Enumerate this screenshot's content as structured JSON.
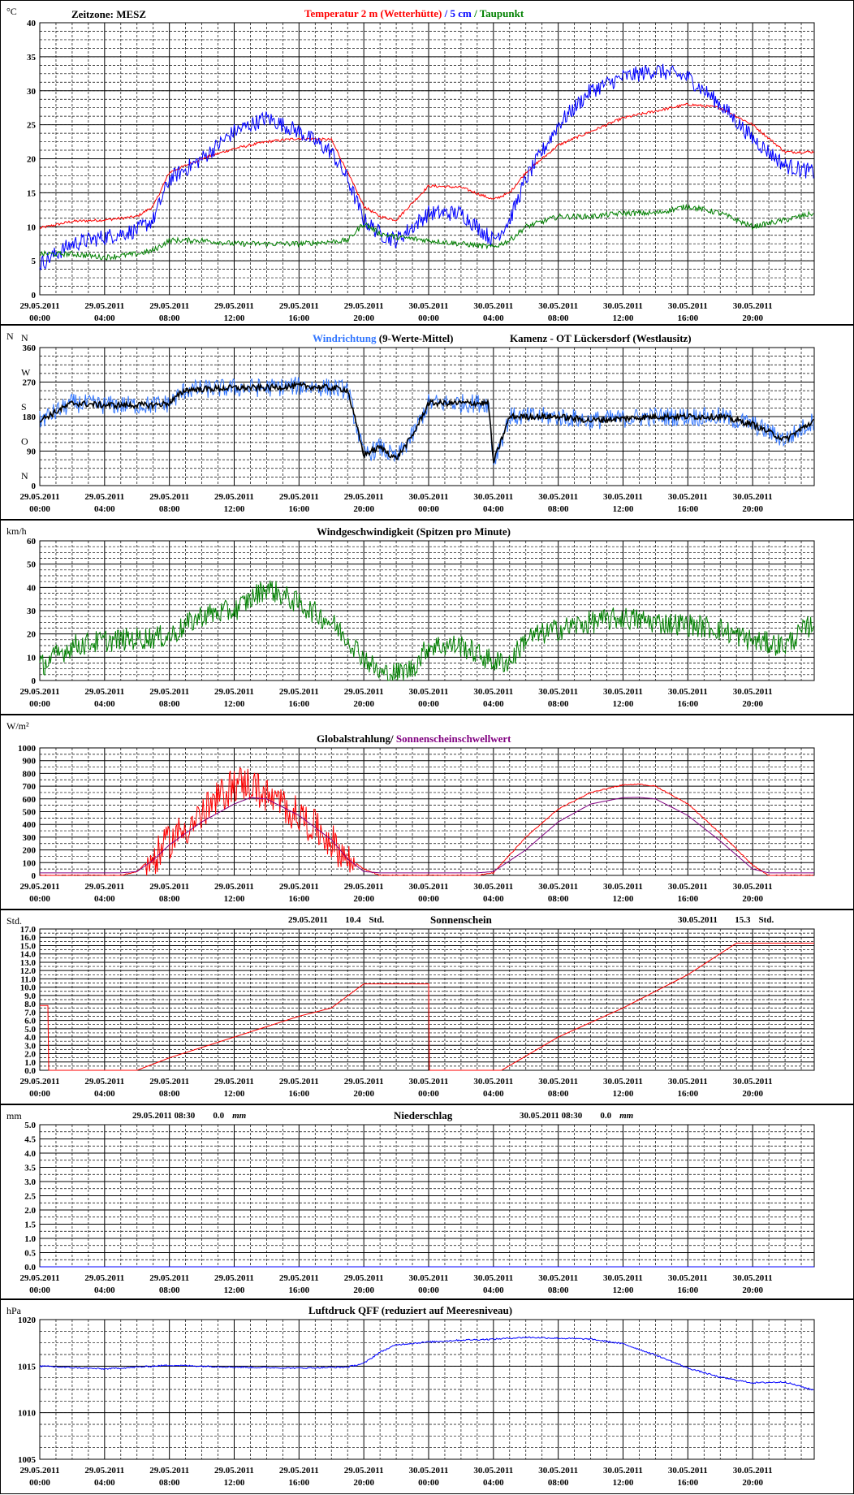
{
  "x_ticks": [
    [
      "29.05.2011",
      "00:00"
    ],
    [
      "29.05.2011",
      "04:00"
    ],
    [
      "29.05.2011",
      "08:00"
    ],
    [
      "29.05.2011",
      "12:00"
    ],
    [
      "29.05.2011",
      "16:00"
    ],
    [
      "29.05.2011",
      "20:00"
    ],
    [
      "30.05.2011",
      "00:00"
    ],
    [
      "30.05.2011",
      "04:00"
    ],
    [
      "30.05.2011",
      "08:00"
    ],
    [
      "30.05.2011",
      "12:00"
    ],
    [
      "30.05.2011",
      "16:00"
    ],
    [
      "30.05.2011",
      "20:00"
    ]
  ],
  "colors": {
    "red": "#ff0000",
    "blue": "#0000ff",
    "green": "#008000",
    "purple": "#800080",
    "black": "#000000",
    "lightblue": "#3377ff"
  },
  "chart_data": [
    {
      "id": "temperature",
      "type": "line",
      "unit": "°C",
      "header": "Zeitzone: MESZ",
      "title_parts": [
        {
          "text": "Temperatur 2 m (Wetterhütte)",
          "color": "#ff0000"
        },
        {
          "text": " / ",
          "color": "#0000ff"
        },
        {
          "text": "5 cm",
          "color": "#0000ff"
        },
        {
          "text": " / ",
          "color": "#008000"
        },
        {
          "text": "Taupunkt",
          "color": "#008000"
        }
      ],
      "ylim": [
        0,
        40
      ],
      "y_ticks": [
        "0",
        "5",
        "10",
        "15",
        "20",
        "25",
        "30",
        "35",
        "40"
      ],
      "x_hours": [
        0,
        2,
        4,
        6,
        7,
        8,
        10,
        12,
        14,
        16,
        18,
        19,
        20,
        21,
        22,
        24,
        26,
        28,
        29,
        30,
        32,
        34,
        36,
        38,
        40,
        42,
        44,
        46,
        47.8
      ],
      "series": [
        {
          "name": "Temperatur 2 m (Wetterhütte)",
          "color": "#ff0000",
          "noise": 0.2,
          "values": [
            9.8,
            10.8,
            11,
            11.5,
            13,
            18,
            20,
            21.5,
            22.5,
            23,
            22.8,
            18,
            13,
            11.5,
            11,
            16,
            15.8,
            14,
            15,
            18,
            22,
            24,
            26,
            27,
            28,
            27.5,
            25,
            21,
            21
          ]
        },
        {
          "name": "5 cm",
          "color": "#0000ff",
          "noise": 1.2,
          "values": [
            4.5,
            7.5,
            8.5,
            9.5,
            11,
            17,
            20,
            24,
            26,
            24,
            21,
            17,
            11,
            9,
            8,
            12,
            12,
            8,
            11,
            17,
            25,
            30,
            32,
            33,
            32,
            28,
            23,
            19,
            18
          ]
        },
        {
          "name": "Taupunkt",
          "color": "#008000",
          "noise": 0.4,
          "values": [
            6,
            6,
            5.5,
            6,
            6.5,
            8,
            8,
            7.5,
            7.5,
            7.5,
            7.8,
            8,
            10.5,
            9,
            8.5,
            8,
            7.5,
            7,
            8,
            10,
            11.5,
            11.5,
            12,
            12,
            13,
            12,
            10,
            11,
            12
          ]
        }
      ]
    },
    {
      "id": "wind_direction",
      "type": "line",
      "title_parts": [
        {
          "text": "Windrichtung",
          "color": "#3377ff"
        },
        {
          "text": " (9-Werte-Mittel)",
          "color": "#000000"
        }
      ],
      "station": "Kamenz - OT Lückersdorf (Westlausitz)",
      "unit": "N",
      "ylim": [
        0,
        360
      ],
      "y_ticks": [
        "0",
        "90",
        "180",
        "270",
        "360"
      ],
      "compass": [
        "N",
        "O",
        "S",
        "W",
        "N"
      ],
      "x_hours": [
        0,
        2,
        4,
        6,
        7,
        8,
        9,
        12,
        14,
        16,
        18,
        19,
        20,
        21,
        22,
        23,
        24,
        26,
        27.7,
        28,
        29,
        30,
        32,
        34,
        36,
        38,
        40,
        42,
        44,
        46,
        47.8
      ],
      "series": [
        {
          "name": "Windrichtung",
          "color": "#3377ff",
          "noise": 25,
          "values": [
            170,
            215,
            210,
            210,
            210,
            215,
            250,
            255,
            255,
            260,
            255,
            250,
            80,
            100,
            70,
            130,
            215,
            215,
            215,
            60,
            180,
            180,
            180,
            170,
            175,
            180,
            180,
            180,
            160,
            120,
            170
          ]
        },
        {
          "name": "9-Werte-Mittel",
          "color": "#000000",
          "noise": 8,
          "values": [
            170,
            215,
            210,
            210,
            210,
            215,
            250,
            255,
            255,
            260,
            255,
            250,
            80,
            100,
            70,
            130,
            215,
            215,
            215,
            60,
            180,
            180,
            180,
            170,
            175,
            180,
            180,
            180,
            160,
            120,
            170
          ]
        }
      ]
    },
    {
      "id": "wind_speed",
      "type": "line",
      "unit": "km/h",
      "title_parts": [
        {
          "text": "Windgeschwindigkeit (Spitzen pro Minute)",
          "color": "#000000"
        }
      ],
      "ylim": [
        0,
        60
      ],
      "y_ticks": [
        "0",
        "10",
        "20",
        "30",
        "40",
        "50",
        "60"
      ],
      "x_hours": [
        0,
        2,
        4,
        6,
        8,
        10,
        12,
        14,
        16,
        18,
        19,
        20,
        21,
        22,
        23,
        24,
        26,
        28,
        29,
        30,
        32,
        34,
        36,
        38,
        40,
        42,
        44,
        46,
        47.8
      ],
      "series": [
        {
          "name": "Windgeschwindigkeit",
          "color": "#008000",
          "noise": 5,
          "values": [
            6,
            15,
            17,
            18,
            19,
            28,
            30,
            40,
            33,
            25,
            18,
            10,
            3,
            3,
            5,
            15,
            15,
            8,
            8,
            18,
            22,
            25,
            27,
            25,
            24,
            22,
            17,
            15,
            25
          ]
        }
      ]
    },
    {
      "id": "radiation",
      "type": "line",
      "unit": "W/m²",
      "title_parts": [
        {
          "text": "Globalstrahlung/",
          "color": "#000000"
        },
        {
          "text": " Sonnenscheinschwellwert",
          "color": "#800080"
        }
      ],
      "ylim": [
        0,
        1000
      ],
      "y_ticks": [
        "0",
        "100",
        "200",
        "300",
        "400",
        "500",
        "600",
        "700",
        "800",
        "900",
        "1000"
      ],
      "x_hours": [
        0,
        5,
        6,
        7,
        8,
        10,
        12,
        13,
        14,
        16,
        18,
        19,
        20,
        21,
        22,
        27,
        28,
        30,
        32,
        34,
        36,
        37,
        38,
        40,
        42,
        44,
        45,
        47.8
      ],
      "series": [
        {
          "name": "Globalstrahlung",
          "color": "#ff0000",
          "noise": 180,
          "values": [
            0,
            0,
            30,
            150,
            300,
            500,
            750,
            750,
            650,
            500,
            300,
            150,
            50,
            0,
            0,
            0,
            20,
            300,
            520,
            650,
            710,
            715,
            700,
            560,
            330,
            80,
            0,
            0
          ]
        },
        {
          "name": "Sonnenscheinschwellwert",
          "color": "#800080",
          "noise": 0,
          "values": [
            20,
            20,
            30,
            120,
            240,
            420,
            560,
            610,
            600,
            470,
            280,
            130,
            30,
            20,
            20,
            20,
            30,
            200,
            420,
            560,
            610,
            612,
            600,
            470,
            270,
            50,
            20,
            20
          ]
        }
      ]
    },
    {
      "id": "sunshine",
      "type": "line",
      "unit": "Std.",
      "title_parts": [
        {
          "text": "Sonnenschein",
          "color": "#000000"
        }
      ],
      "annotations": [
        {
          "date": "29.05.2011",
          "value": "10.4",
          "unit": "Std."
        },
        {
          "date": "30.05.2011",
          "value": "15.3",
          "unit": "Std."
        }
      ],
      "ylim": [
        0,
        17
      ],
      "y_ticks": [
        "0.0",
        "1.0",
        "2.0",
        "3.0",
        "4.0",
        "5.0",
        "6.0",
        "7.0",
        "8.0",
        "9.0",
        "10.0",
        "11.0",
        "12.0",
        "13.0",
        "14.0",
        "15.0",
        "16.0",
        "17.0"
      ],
      "x_hours": [
        0,
        0.5,
        0.55,
        6,
        8,
        12,
        16,
        18,
        20,
        24,
        24.05,
        28.5,
        32,
        36,
        40,
        43,
        47.8
      ],
      "series": [
        {
          "name": "Sonnenschein",
          "color": "#ff0000",
          "noise": 0,
          "values": [
            7.8,
            7.8,
            0,
            0,
            1.5,
            4,
            6.5,
            7.5,
            10.4,
            10.4,
            0,
            0,
            4,
            7.5,
            11.5,
            15.3,
            15.3
          ]
        }
      ]
    },
    {
      "id": "precipitation",
      "type": "line",
      "unit": "mm",
      "title_parts": [
        {
          "text": "Niederschlag",
          "color": "#000000"
        }
      ],
      "annotations": [
        {
          "date": "29.05.2011 08:30",
          "value": "0.0",
          "unit": "mm"
        },
        {
          "date": "30.05.2011 08:30",
          "value": "0.0",
          "unit": "mm"
        }
      ],
      "ylim": [
        0,
        5
      ],
      "y_ticks": [
        "0.0",
        "0.5",
        "1.0",
        "1.5",
        "2.0",
        "2.5",
        "3.0",
        "3.5",
        "4.0",
        "4.5",
        "5.0"
      ],
      "x_hours": [
        0,
        47.8
      ],
      "series": [
        {
          "name": "Niederschlag",
          "color": "#0000ff",
          "noise": 0,
          "values": [
            0,
            0
          ]
        }
      ]
    },
    {
      "id": "pressure",
      "type": "line",
      "unit": "hPa",
      "title_parts": [
        {
          "text": "Luftdruck QFF (reduziert auf Meeresniveau)",
          "color": "#000000"
        }
      ],
      "ylim": [
        1005,
        1020
      ],
      "y_ticks": [
        "1005",
        "1010",
        "1015",
        "1020"
      ],
      "x_hours": [
        0,
        4,
        8,
        12,
        16,
        19,
        20,
        21,
        22,
        24,
        26,
        28,
        30,
        32,
        34,
        36,
        38,
        40,
        42,
        44,
        46,
        47.8
      ],
      "series": [
        {
          "name": "Luftdruck QFF",
          "color": "#0000ff",
          "noise": 0.08,
          "values": [
            1015,
            1014.7,
            1015.1,
            1014.9,
            1014.8,
            1014.9,
            1015.3,
            1016.5,
            1017.3,
            1017.6,
            1017.8,
            1017.9,
            1018.1,
            1018,
            1017.9,
            1017.4,
            1016.2,
            1014.8,
            1013.8,
            1013.2,
            1013.3,
            1012.4
          ]
        }
      ]
    }
  ]
}
